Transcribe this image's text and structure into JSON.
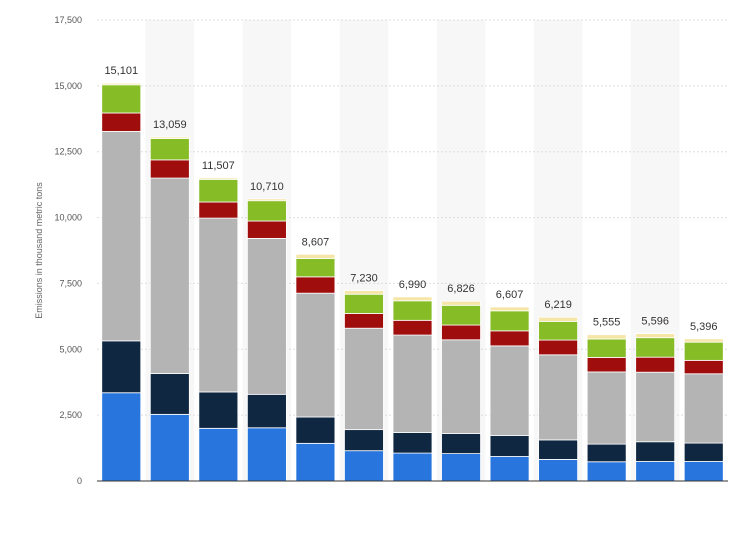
{
  "chart_data": {
    "type": "bar",
    "stacked": true,
    "title": "",
    "xlabel": "",
    "ylabel": "Emissions in thousand metric tons",
    "ylim": [
      0,
      17500
    ],
    "yticks": [
      0,
      2500,
      5000,
      7500,
      10000,
      12500,
      15000,
      17500
    ],
    "ytick_labels": [
      "0",
      "2,500",
      "5,000",
      "7,500",
      "10,000",
      "12,500",
      "15,000",
      "17,500"
    ],
    "grid": true,
    "legend": "none",
    "categories": [
      "",
      "",
      "",
      "",
      "",
      "",
      "",
      "",
      "",
      "",
      "",
      "",
      ""
    ],
    "totals": [
      15101,
      13059,
      11507,
      10710,
      8607,
      7230,
      6990,
      6826,
      6607,
      6219,
      5555,
      5596,
      5396
    ],
    "total_labels": [
      "15,101",
      "13,059",
      "11,507",
      "10,710",
      "8,607",
      "7,230",
      "6,990",
      "6,826",
      "6,607",
      "6,219",
      "5,555",
      "5,596",
      "5,396"
    ],
    "series": [
      {
        "color": "#2876dd",
        "values": [
          3350,
          2530,
          2000,
          2020,
          1430,
          1150,
          1060,
          1040,
          930,
          820,
          730,
          740,
          740
        ]
      },
      {
        "color": "#0f2741",
        "values": [
          1970,
          1550,
          1380,
          1270,
          1000,
          800,
          780,
          760,
          800,
          740,
          670,
          750,
          700
        ]
      },
      {
        "color": "#b4b4b4",
        "values": [
          7950,
          7420,
          6600,
          5920,
          4700,
          3850,
          3700,
          3560,
          3400,
          3230,
          2740,
          2640,
          2630
        ]
      },
      {
        "color": "#a00d0d",
        "values": [
          700,
          690,
          610,
          660,
          620,
          560,
          560,
          560,
          570,
          560,
          550,
          570,
          510
        ]
      },
      {
        "color": "#86bc25",
        "values": [
          1070,
          810,
          860,
          770,
          700,
          730,
          740,
          750,
          760,
          710,
          700,
          740,
          690
        ]
      },
      {
        "color": "#f5e6a8",
        "values": [
          61,
          59,
          57,
          70,
          157,
          140,
          150,
          156,
          147,
          159,
          165,
          156,
          126
        ]
      }
    ]
  }
}
